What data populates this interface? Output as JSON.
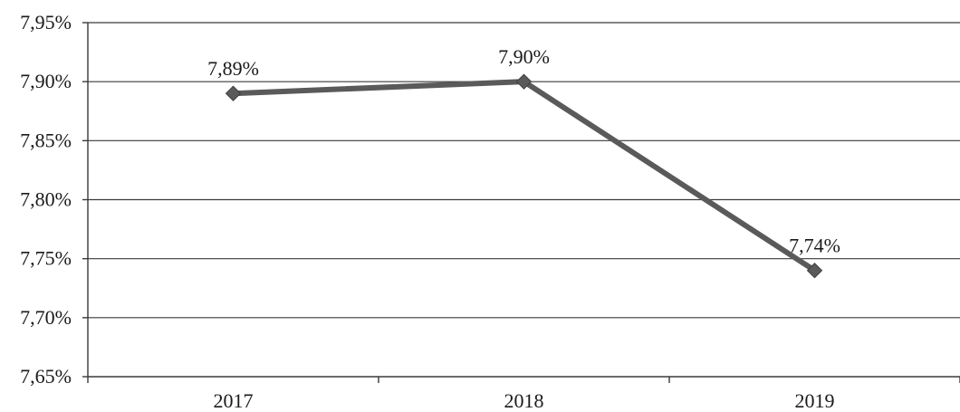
{
  "chart_data": {
    "type": "line",
    "categories": [
      "2017",
      "2018",
      "2019"
    ],
    "series": [
      {
        "values": [
          7.89,
          7.9,
          7.74
        ],
        "data_labels": [
          "7,89%",
          "7,90%",
          "7,74%"
        ],
        "color": "#5a5a5a"
      }
    ],
    "y_ticks": [
      7.65,
      7.7,
      7.75,
      7.8,
      7.85,
      7.9,
      7.95
    ],
    "y_tick_labels": [
      "7,65%",
      "7,70%",
      "7,75%",
      "7,80%",
      "7,85%",
      "7,90%",
      "7,95%"
    ],
    "ylim": [
      7.65,
      7.95
    ],
    "grid": true,
    "legend": "none",
    "marker": "diamond",
    "gridline_color": "#3a3a3a"
  }
}
